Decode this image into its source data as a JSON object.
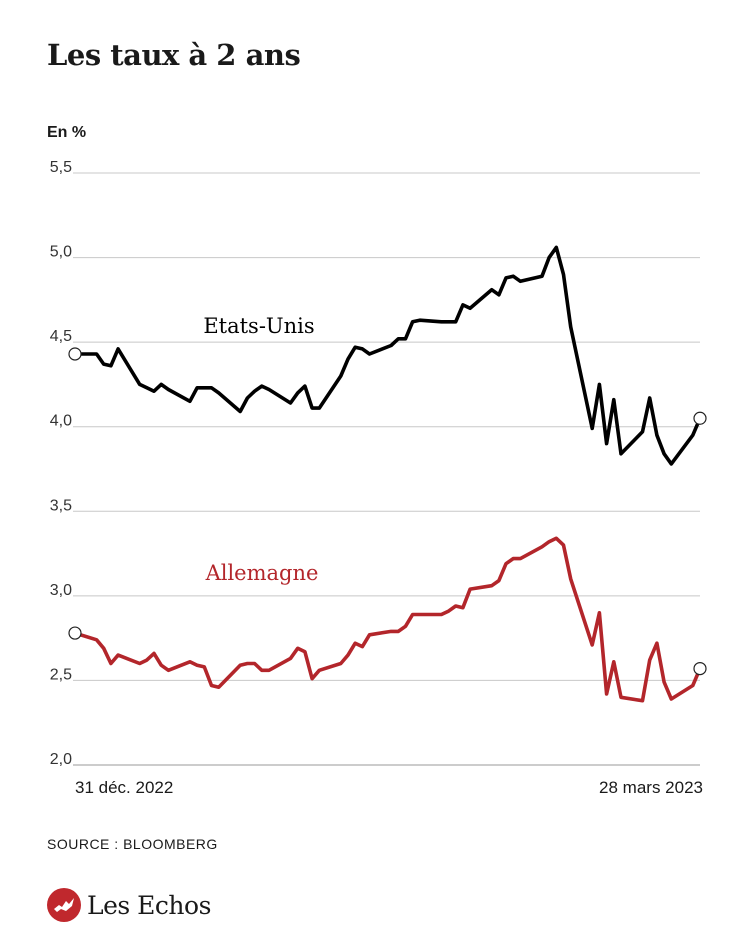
{
  "header": {
    "title": "Les taux à 2 ans",
    "unit_label": "En %"
  },
  "footer": {
    "source": "SOURCE : BLOOMBERG",
    "brand": "Les Echos",
    "brand_color": "#c0282d"
  },
  "chart_data": {
    "type": "line",
    "title": "Les taux à 2 ans",
    "ylabel": "En %",
    "ylim": [
      2.0,
      5.5
    ],
    "yticks": [
      "5,5",
      "5,0",
      "4,5",
      "4,0",
      "3,5",
      "3,0",
      "2,5",
      "2,0"
    ],
    "yticks_values": [
      5.5,
      5.0,
      4.5,
      4.0,
      3.5,
      3.0,
      2.5,
      2.0
    ],
    "x_tick_labels": [
      "31 déc. 2022",
      "28 mars 2023"
    ],
    "x_range": [
      "2022-12-31",
      "2023-03-28"
    ],
    "grid": true,
    "series": [
      {
        "name": "Etats-Unis",
        "color": "#000000",
        "x": [
          "2022-12-31",
          "2023-01-03",
          "2023-01-04",
          "2023-01-05",
          "2023-01-06",
          "2023-01-09",
          "2023-01-10",
          "2023-01-11",
          "2023-01-12",
          "2023-01-13",
          "2023-01-16",
          "2023-01-17",
          "2023-01-18",
          "2023-01-19",
          "2023-01-20",
          "2023-01-23",
          "2023-01-24",
          "2023-01-25",
          "2023-01-26",
          "2023-01-27",
          "2023-01-30",
          "2023-01-31",
          "2023-02-01",
          "2023-02-02",
          "2023-02-03",
          "2023-02-06",
          "2023-02-07",
          "2023-02-08",
          "2023-02-09",
          "2023-02-10",
          "2023-02-13",
          "2023-02-14",
          "2023-02-15",
          "2023-02-16",
          "2023-02-17",
          "2023-02-20",
          "2023-02-21",
          "2023-02-22",
          "2023-02-23",
          "2023-02-24",
          "2023-02-27",
          "2023-02-28",
          "2023-03-01",
          "2023-03-02",
          "2023-03-03",
          "2023-03-06",
          "2023-03-07",
          "2023-03-08",
          "2023-03-09",
          "2023-03-10",
          "2023-03-13",
          "2023-03-14",
          "2023-03-15",
          "2023-03-16",
          "2023-03-17",
          "2023-03-20",
          "2023-03-21",
          "2023-03-22",
          "2023-03-23",
          "2023-03-24",
          "2023-03-27",
          "2023-03-28"
        ],
        "values": [
          4.43,
          4.43,
          4.37,
          4.36,
          4.46,
          4.25,
          4.23,
          4.21,
          4.25,
          4.22,
          4.15,
          4.23,
          4.23,
          4.23,
          4.2,
          4.09,
          4.17,
          4.21,
          4.24,
          4.22,
          4.14,
          4.2,
          4.24,
          4.11,
          4.11,
          4.3,
          4.4,
          4.47,
          4.46,
          4.43,
          4.48,
          4.52,
          4.52,
          4.62,
          4.63,
          4.62,
          4.62,
          4.62,
          4.72,
          4.7,
          4.81,
          4.78,
          4.88,
          4.89,
          4.86,
          4.89,
          5.0,
          5.06,
          4.9,
          4.59,
          3.99,
          4.25,
          3.9,
          4.16,
          3.84,
          3.97,
          4.17,
          3.95,
          3.84,
          3.78,
          3.95,
          4.05
        ]
      },
      {
        "name": "Allemagne",
        "color": "#b3262b",
        "x": [
          "2022-12-31",
          "2023-01-03",
          "2023-01-04",
          "2023-01-05",
          "2023-01-06",
          "2023-01-09",
          "2023-01-10",
          "2023-01-11",
          "2023-01-12",
          "2023-01-13",
          "2023-01-16",
          "2023-01-17",
          "2023-01-18",
          "2023-01-19",
          "2023-01-20",
          "2023-01-23",
          "2023-01-24",
          "2023-01-25",
          "2023-01-26",
          "2023-01-27",
          "2023-01-30",
          "2023-01-31",
          "2023-02-01",
          "2023-02-02",
          "2023-02-03",
          "2023-02-06",
          "2023-02-07",
          "2023-02-08",
          "2023-02-09",
          "2023-02-10",
          "2023-02-13",
          "2023-02-14",
          "2023-02-15",
          "2023-02-16",
          "2023-02-17",
          "2023-02-20",
          "2023-02-21",
          "2023-02-22",
          "2023-02-23",
          "2023-02-24",
          "2023-02-27",
          "2023-02-28",
          "2023-03-01",
          "2023-03-02",
          "2023-03-03",
          "2023-03-06",
          "2023-03-07",
          "2023-03-08",
          "2023-03-09",
          "2023-03-10",
          "2023-03-13",
          "2023-03-14",
          "2023-03-15",
          "2023-03-16",
          "2023-03-17",
          "2023-03-20",
          "2023-03-21",
          "2023-03-22",
          "2023-03-23",
          "2023-03-24",
          "2023-03-27",
          "2023-03-28"
        ],
        "values": [
          2.78,
          2.74,
          2.69,
          2.6,
          2.65,
          2.6,
          2.62,
          2.66,
          2.59,
          2.56,
          2.61,
          2.59,
          2.58,
          2.47,
          2.46,
          2.59,
          2.6,
          2.6,
          2.56,
          2.56,
          2.63,
          2.69,
          2.67,
          2.51,
          2.56,
          2.6,
          2.65,
          2.72,
          2.7,
          2.77,
          2.79,
          2.79,
          2.82,
          2.89,
          2.89,
          2.89,
          2.91,
          2.94,
          2.93,
          3.04,
          3.06,
          3.09,
          3.19,
          3.22,
          3.22,
          3.29,
          3.32,
          3.34,
          3.3,
          3.1,
          2.71,
          2.9,
          2.42,
          2.61,
          2.4,
          2.38,
          2.62,
          2.72,
          2.49,
          2.39,
          2.47,
          2.57
        ]
      }
    ]
  }
}
